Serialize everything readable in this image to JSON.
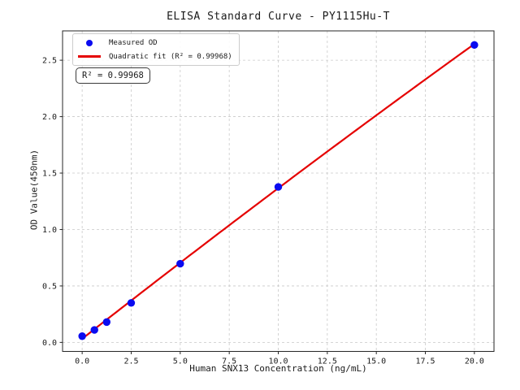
{
  "annotation": {
    "r_squared_text": "R² = 0.99968"
  },
  "chart_data": {
    "type": "scatter",
    "title": "ELISA Standard Curve - PY1115Hu-T",
    "xlabel": "Human SNX13 Concentration (ng/mL)",
    "ylabel": "OD Value(450nm)",
    "xlim": [
      -1,
      21
    ],
    "ylim": [
      -0.08,
      2.76
    ],
    "xticks": [
      0,
      2.5,
      5,
      7.5,
      10,
      12.5,
      15,
      17.5,
      20
    ],
    "xtick_labels": [
      "0.0",
      "2.5",
      "5.0",
      "7.5",
      "10.0",
      "12.5",
      "15.0",
      "17.5",
      "20.0"
    ],
    "yticks": [
      0,
      0.5,
      1,
      1.5,
      2,
      2.5
    ],
    "ytick_labels": [
      "0.0",
      "0.5",
      "1.0",
      "1.5",
      "2.0",
      "2.5"
    ],
    "grid": true,
    "grid_style": "dashed",
    "legend_position": "upper left",
    "colors": {
      "points": "#0b0bf0",
      "fit_line": "#e50000",
      "grid": "#c9c9c9",
      "spine": "#262626",
      "text": "#1a1a1a"
    },
    "series": [
      {
        "name": "Measured OD",
        "type": "scatter",
        "x": [
          0,
          0.625,
          1.25,
          2.5,
          5,
          10,
          20
        ],
        "y": [
          0.055,
          0.11,
          0.18,
          0.35,
          0.697,
          1.377,
          2.635
        ]
      },
      {
        "name": "Quadratic fit (R² = 0.99968)",
        "type": "fit-line",
        "r_squared": 0.99968,
        "fit_coefficients": {
          "a": -0.00028,
          "b": 0.1362,
          "c": 0.032
        },
        "x_range": [
          0,
          20
        ]
      }
    ]
  }
}
